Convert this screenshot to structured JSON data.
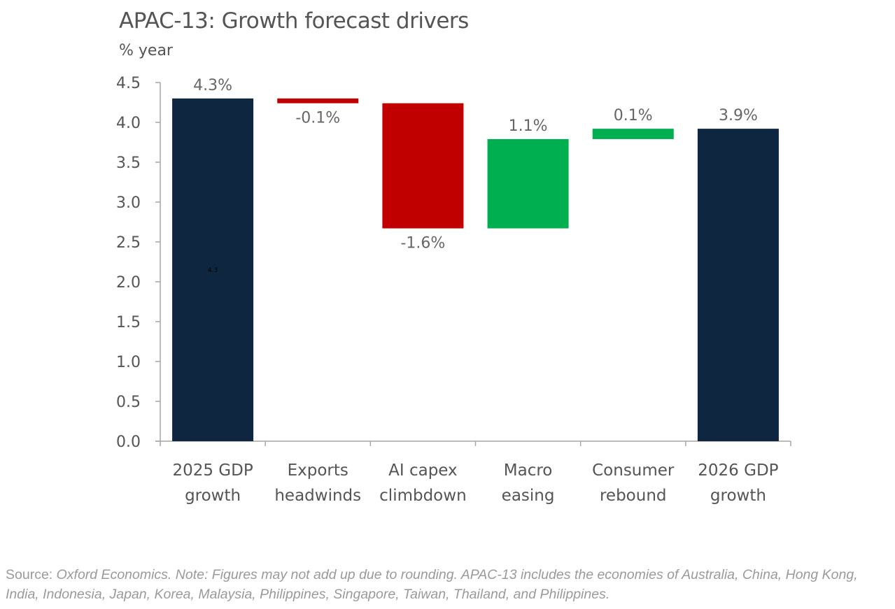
{
  "chart_data": {
    "type": "bar",
    "subtype": "waterfall",
    "title": "APAC-13: Growth forecast drivers",
    "ylabel": "% year",
    "xlabel": "",
    "ylim": [
      0,
      4.5
    ],
    "yticks": [
      "0.0",
      "0.5",
      "1.0",
      "1.5",
      "2.0",
      "2.5",
      "3.0",
      "3.5",
      "4.0",
      "4.5"
    ],
    "grid": false,
    "categories": [
      [
        "2025 GDP",
        "growth"
      ],
      [
        "Exports",
        "headwinds"
      ],
      [
        "AI capex",
        "climbdown"
      ],
      [
        "Macro",
        "easing"
      ],
      [
        "Consumer",
        "rebound"
      ],
      [
        "2026 GDP",
        "growth"
      ]
    ],
    "bars": [
      {
        "kind": "total",
        "start": 0,
        "end": 4.3,
        "value": 4.3,
        "label": "4.3%",
        "inner_label": "4.3"
      },
      {
        "kind": "decrease",
        "start": 4.3,
        "end": 4.24,
        "value": -0.1,
        "label": "-0.1%"
      },
      {
        "kind": "decrease",
        "start": 4.24,
        "end": 2.67,
        "value": -1.6,
        "label": "-1.6%"
      },
      {
        "kind": "increase",
        "start": 2.67,
        "end": 3.79,
        "value": 1.1,
        "label": "1.1%"
      },
      {
        "kind": "increase",
        "start": 3.79,
        "end": 3.92,
        "value": 0.1,
        "label": "0.1%"
      },
      {
        "kind": "total",
        "start": 0,
        "end": 3.92,
        "value": 3.9,
        "label": "3.9%"
      }
    ],
    "colors": {
      "total": "#0f2640",
      "decrease": "#c00000",
      "increase": "#00b050"
    }
  },
  "note": {
    "source_prefix": "Source: ",
    "source_text": "Oxford Economics. Note: Figures may not add up due to rounding. APAC-13 includes the economies of Australia, China, Hong Kong, India, Indonesia, Japan, Korea, Malaysia, Philippines, Singapore, Taiwan, Thailand, and Philippines."
  }
}
